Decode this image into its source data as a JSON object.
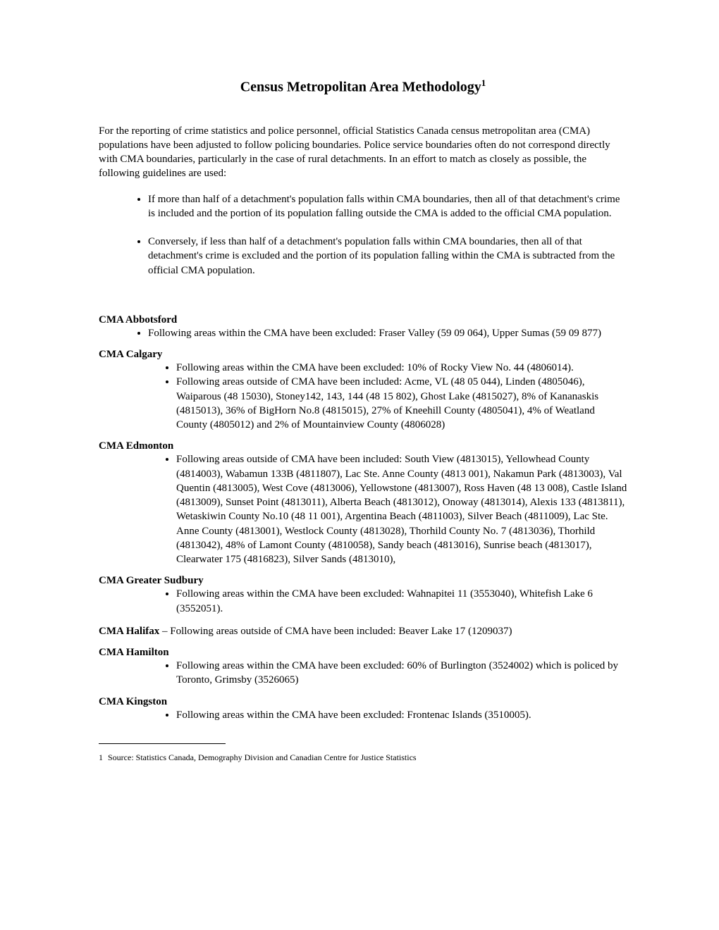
{
  "title": "Census Metropolitan Area Methodology",
  "title_footnote_ref": "1",
  "intro": "For the reporting of crime statistics and police personnel, official Statistics Canada census metropolitan area (CMA) populations have been adjusted to follow policing boundaries. Police service boundaries often do not correspond directly with CMA boundaries, particularly in the case of rural detachments. In an effort to match as closely as possible, the following guidelines are used:",
  "guidelines": [
    "If more than half of a detachment's population falls within CMA boundaries, then all of that detachment's crime is included and the portion of its population falling outside the CMA is added to the official CMA population.",
    "Conversely, if less than half of a detachment's population falls within CMA boundaries, then all of that detachment's crime is excluded and the portion of its population falling within the CMA is subtracted from the official CMA population."
  ],
  "sections": {
    "abbotsford": {
      "heading": "CMA Abbotsford",
      "items": [
        "Following areas within the CMA have been excluded: Fraser Valley (59 09 064), Upper Sumas (59 09 877)"
      ]
    },
    "calgary": {
      "heading": "CMA Calgary",
      "items": [
        "Following areas within the CMA have been excluded: 10% of Rocky View No. 44 (4806014).",
        "Following areas outside of CMA have been included: Acme, VL (48 05 044), Linden (4805046), Waiparous (48 15030), Stoney142, 143, 144 (48 15 802), Ghost Lake (4815027), 8% of Kananaskis (4815013), 36% of BigHorn No.8 (4815015), 27% of Kneehill County (4805041), 4% of Weatland County (4805012) and 2% of Mountainview County (4806028)"
      ]
    },
    "edmonton": {
      "heading": "CMA Edmonton",
      "items": [
        "Following areas outside of CMA have been included: South View (4813015), Yellowhead County (4814003), Wabamun 133B (4811807), Lac Ste. Anne County (4813 001), Nakamun Park (4813003), Val Quentin (4813005), West Cove (4813006), Yellowstone (4813007), Ross Haven (48 13 008), Castle Island (4813009), Sunset Point (4813011), Alberta Beach (4813012), Onoway (4813014), Alexis 133 (4813811), Wetaskiwin County No.10 (48 11 001), Argentina Beach (4811003), Silver Beach (4811009), Lac Ste. Anne County (4813001), Westlock County (4813028), Thorhild County No. 7 (4813036), Thorhild (4813042), 48% of Lamont County (4810058), Sandy beach (4813016), Sunrise beach (4813017), Clearwater 175 (4816823), Silver Sands (4813010),"
      ]
    },
    "sudbury": {
      "heading": "CMA Greater Sudbury",
      "items": [
        "Following areas within the CMA have been excluded: Wahnapitei 11 (3553040), Whitefish Lake 6 (3552051)."
      ]
    },
    "halifax": {
      "heading": "CMA Halifax",
      "text": " – Following areas outside of CMA have been included:  Beaver Lake 17 (1209037)"
    },
    "hamilton": {
      "heading": "CMA Hamilton",
      "items": [
        "Following areas within the CMA have been excluded: 60% of Burlington (3524002) which is policed by Toronto, Grimsby (3526065)"
      ]
    },
    "kingston": {
      "heading": "CMA Kingston",
      "items": [
        "Following areas within the CMA have been excluded: Frontenac Islands (3510005)."
      ]
    }
  },
  "footnote": {
    "num": "1",
    "text": "Source: Statistics Canada, Demography Division and Canadian Centre for Justice Statistics"
  }
}
